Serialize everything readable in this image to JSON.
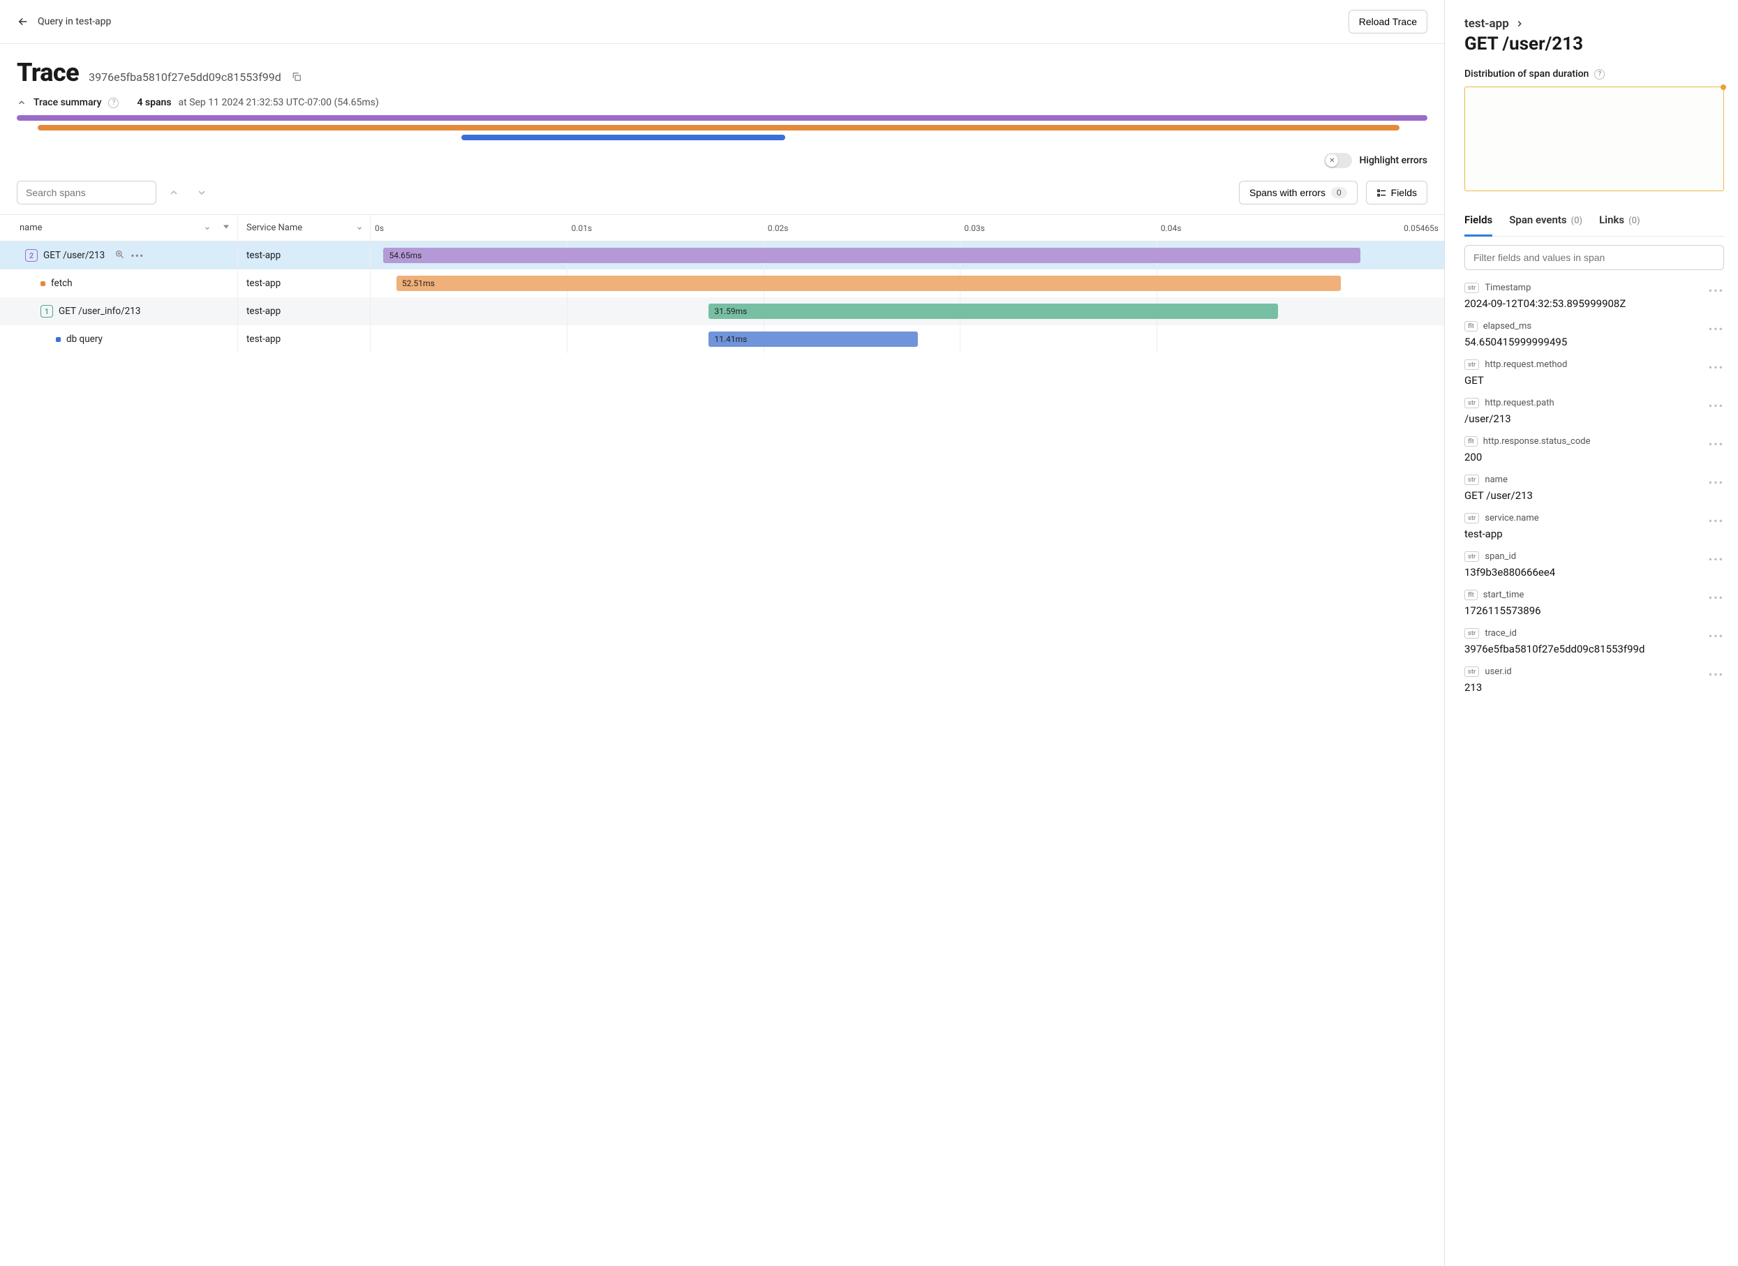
{
  "topbar": {
    "breadcrumb": "Query in test-app",
    "reload_label": "Reload Trace"
  },
  "header": {
    "title": "Trace",
    "trace_id": "3976e5fba5810f27e5dd09c81553f99d",
    "summary_label": "Trace summary",
    "span_count_label": "4 spans",
    "timestamp_label": "at Sep 11 2024 21:32:53 UTC-07:00 (54.65ms)"
  },
  "summary_bars": [
    {
      "color": "#9a6cc8",
      "left_pct": 0,
      "width_pct": 100
    },
    {
      "color": "#e58a3a",
      "left_pct": 1.5,
      "width_pct": 96.5
    },
    {
      "color": "#3a6fd8",
      "left_pct": 31.5,
      "width_pct": 23
    }
  ],
  "controls": {
    "highlight_errors_label": "Highlight errors",
    "highlight_errors_on": false,
    "search_placeholder": "Search spans",
    "spans_with_errors_label": "Spans with errors",
    "spans_with_errors_count": "0",
    "fields_button_label": "Fields"
  },
  "table": {
    "name_header": "name",
    "service_header": "Service Name",
    "timeline": {
      "ticks": [
        {
          "label": "0s",
          "pct": 0
        },
        {
          "label": "0.01s",
          "pct": 18.3
        },
        {
          "label": "0.02s",
          "pct": 36.6
        },
        {
          "label": "0.03s",
          "pct": 54.9
        },
        {
          "label": "0.04s",
          "pct": 73.2
        },
        {
          "label": "0.05465s",
          "pct": 100
        }
      ],
      "total_ms": 54.65
    },
    "rows": [
      {
        "indent": 0,
        "badge": "2",
        "badge_color": "#9a6cc8",
        "name": "GET /user/213",
        "service": "test-app",
        "bar": {
          "left_pct": 1.2,
          "width_pct": 91,
          "color": "#b499d6",
          "label": "54.65ms"
        },
        "selected": true,
        "show_actions": true
      },
      {
        "indent": 1,
        "dot_color": "#e58a3a",
        "name": "fetch",
        "service": "test-app",
        "bar": {
          "left_pct": 2.4,
          "width_pct": 88,
          "color": "#efb07a",
          "label": "52.51ms"
        }
      },
      {
        "indent": 1,
        "badge": "1",
        "badge_color": "#4aa884",
        "name": "GET /user_info/213",
        "service": "test-app",
        "bar": {
          "left_pct": 31.5,
          "width_pct": 53,
          "color": "#77bfa3",
          "label": "31.59ms"
        },
        "alt": true
      },
      {
        "indent": 2,
        "dot_color": "#3a6fd8",
        "name": "db query",
        "service": "test-app",
        "bar": {
          "left_pct": 31.5,
          "width_pct": 19.5,
          "color": "#6f94da",
          "label": "11.41ms"
        }
      }
    ]
  },
  "side": {
    "crumb": "test-app",
    "title": "GET /user/213",
    "dist_label": "Distribution of span duration",
    "tabs": {
      "fields": "Fields",
      "span_events": "Span events",
      "span_events_count": "(0)",
      "links": "Links",
      "links_count": "(0)"
    },
    "filter_placeholder": "Filter fields and values in span",
    "fields": [
      {
        "type": "str",
        "name": "Timestamp",
        "value": "2024-09-12T04:32:53.895999908Z"
      },
      {
        "type": "flt",
        "name": "elapsed_ms",
        "value": "54.650415999999495"
      },
      {
        "type": "str",
        "name": "http.request.method",
        "value": "GET"
      },
      {
        "type": "str",
        "name": "http.request.path",
        "value": "/user/213"
      },
      {
        "type": "flt",
        "name": "http.response.status_code",
        "value": "200"
      },
      {
        "type": "str",
        "name": "name",
        "value": "GET /user/213"
      },
      {
        "type": "str",
        "name": "service.name",
        "value": "test-app"
      },
      {
        "type": "str",
        "name": "span_id",
        "value": "13f9b3e880666ee4"
      },
      {
        "type": "flt",
        "name": "start_time",
        "value": "1726115573896"
      },
      {
        "type": "str",
        "name": "trace_id",
        "value": "3976e5fba5810f27e5dd09c81553f99d"
      },
      {
        "type": "str",
        "name": "user.id",
        "value": "213"
      }
    ]
  },
  "colors": {
    "selected_row_bg": "#d9ecf9",
    "alt_row_bg": "#f5f6f8",
    "grid_line": "#eeeeee"
  }
}
